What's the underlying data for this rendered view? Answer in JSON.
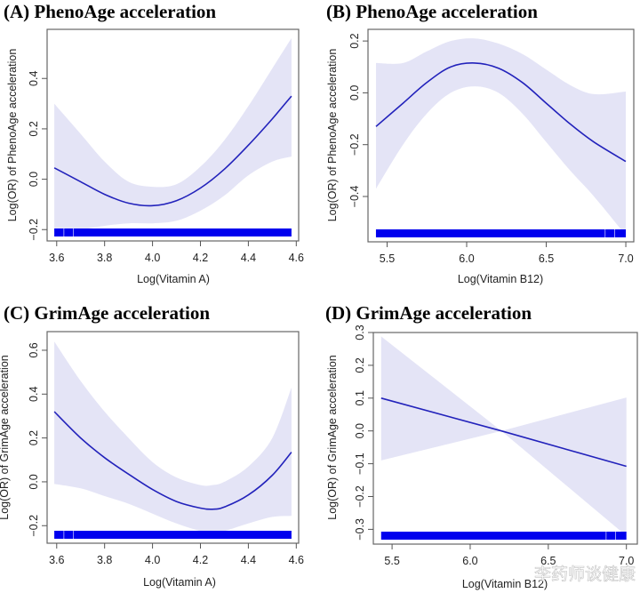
{
  "figure": {
    "watermark": "李药师谈健康"
  },
  "chart_data": [
    {
      "id": "A",
      "type": "line",
      "title": "(A) PhenoAge acceleration",
      "xlabel": "Log(Vitamin A)",
      "ylabel": "Log(OR) of PhenoAge acceleration",
      "xlim": [
        3.56,
        4.61
      ],
      "ylim": [
        -0.245,
        0.595
      ],
      "xticks": [
        3.6,
        3.8,
        4.0,
        4.2,
        4.4,
        4.6
      ],
      "xtick_labels": [
        "3.6",
        "3.8",
        "4.0",
        "4.2",
        "4.4",
        "4.6"
      ],
      "yticks": [
        -0.2,
        0.0,
        0.2,
        0.4
      ],
      "ytick_labels": [
        "-0.2",
        "0.0",
        "0.2",
        "0.4"
      ],
      "series": [
        {
          "name": "Log(OR) estimate",
          "x": [
            3.59,
            3.7,
            3.8,
            3.9,
            4.0,
            4.1,
            4.2,
            4.3,
            4.4,
            4.5,
            4.58
          ],
          "y": [
            0.045,
            -0.01,
            -0.06,
            -0.095,
            -0.105,
            -0.085,
            -0.035,
            0.04,
            0.135,
            0.24,
            0.33
          ],
          "lower": [
            -0.21,
            -0.2,
            -0.185,
            -0.175,
            -0.175,
            -0.165,
            -0.125,
            -0.065,
            0.015,
            0.07,
            0.09
          ],
          "upper": [
            0.3,
            0.18,
            0.07,
            -0.01,
            -0.03,
            -0.02,
            0.05,
            0.155,
            0.29,
            0.44,
            0.56
          ]
        }
      ],
      "rug": {
        "from": 3.59,
        "to": 4.58,
        "gaps": [
          3.63,
          3.67
        ]
      },
      "grid": false,
      "legend": "none"
    },
    {
      "id": "B",
      "type": "line",
      "title": "(B) PhenoAge acceleration",
      "xlabel": "Log(Vitamin B12)",
      "ylabel": "Log(OR) of PhenoAge acceleration",
      "xlim": [
        5.38,
        7.05
      ],
      "ylim": [
        -0.575,
        0.245
      ],
      "xticks": [
        5.5,
        6.0,
        6.5,
        7.0
      ],
      "xtick_labels": [
        "5.5",
        "6.0",
        "6.5",
        "7.0"
      ],
      "yticks": [
        -0.4,
        -0.2,
        0.0,
        0.2
      ],
      "ytick_labels": [
        "-0.4",
        "-0.2",
        "0.0",
        "0.2"
      ],
      "series": [
        {
          "name": "Log(OR) estimate",
          "x": [
            5.43,
            5.6,
            5.75,
            5.9,
            6.05,
            6.2,
            6.35,
            6.5,
            6.65,
            6.8,
            7.0
          ],
          "y": [
            -0.13,
            -0.04,
            0.04,
            0.1,
            0.115,
            0.095,
            0.04,
            -0.04,
            -0.12,
            -0.19,
            -0.265
          ],
          "lower": [
            -0.37,
            -0.2,
            -0.08,
            0.0,
            0.025,
            0.0,
            -0.08,
            -0.19,
            -0.3,
            -0.4,
            -0.55
          ],
          "upper": [
            0.115,
            0.115,
            0.16,
            0.2,
            0.21,
            0.19,
            0.15,
            0.09,
            0.03,
            -0.005,
            0.005
          ]
        }
      ],
      "rug": {
        "from": 5.43,
        "to": 7.0,
        "gaps": [
          6.87,
          6.93
        ]
      },
      "grid": false,
      "legend": "none"
    },
    {
      "id": "C",
      "type": "line",
      "title": "(C) GrimAge acceleration",
      "xlabel": "Log(Vitamin A)",
      "ylabel": "Log(OR) of GrimAge acceleration",
      "xlim": [
        3.56,
        4.61
      ],
      "ylim": [
        -0.28,
        0.685
      ],
      "xticks": [
        3.6,
        3.8,
        4.0,
        4.2,
        4.4,
        4.6
      ],
      "xtick_labels": [
        "3.6",
        "3.8",
        "4.0",
        "4.2",
        "4.4",
        "4.6"
      ],
      "yticks": [
        -0.2,
        0.0,
        0.2,
        0.4,
        0.6
      ],
      "ytick_labels": [
        "-0.2",
        "0.0",
        "0.2",
        "0.4",
        "0.6"
      ],
      "series": [
        {
          "name": "Log(OR) estimate",
          "x": [
            3.59,
            3.7,
            3.8,
            3.9,
            4.0,
            4.1,
            4.2,
            4.25,
            4.3,
            4.4,
            4.5,
            4.58
          ],
          "y": [
            0.32,
            0.2,
            0.11,
            0.035,
            -0.035,
            -0.09,
            -0.12,
            -0.125,
            -0.115,
            -0.06,
            0.03,
            0.135
          ],
          "lower": [
            -0.01,
            -0.03,
            -0.065,
            -0.1,
            -0.145,
            -0.19,
            -0.225,
            -0.235,
            -0.225,
            -0.19,
            -0.16,
            -0.155
          ],
          "upper": [
            0.64,
            0.46,
            0.32,
            0.2,
            0.09,
            0.02,
            -0.015,
            -0.015,
            0.0,
            0.07,
            0.2,
            0.43
          ]
        }
      ],
      "rug": {
        "from": 3.59,
        "to": 4.58,
        "gaps": [
          3.63,
          3.67
        ]
      },
      "grid": false,
      "legend": "none"
    },
    {
      "id": "D",
      "type": "line",
      "title": "(D) GrimAge acceleration",
      "xlabel": "Log(Vitamin B12)",
      "ylabel": "Log(OR) of GrimAge acceleration",
      "xlim": [
        5.38,
        7.07
      ],
      "ylim": [
        -0.345,
        0.3
      ],
      "xticks": [
        5.5,
        6.0,
        6.5,
        7.0
      ],
      "xtick_labels": [
        "5.5",
        "6.0",
        "6.5",
        "7.0"
      ],
      "yticks": [
        -0.3,
        -0.2,
        -0.1,
        0.0,
        0.1,
        0.2,
        0.3
      ],
      "ytick_labels": [
        "-0.3",
        "-0.2",
        "-0.1",
        "0.0",
        "0.1",
        "0.2",
        "0.3"
      ],
      "series": [
        {
          "name": "Log(OR) estimate",
          "x": [
            5.43,
            6.2,
            7.0
          ],
          "y": [
            0.1,
            0.0,
            -0.108
          ],
          "lower": [
            -0.09,
            0.0,
            -0.32
          ],
          "upper": [
            0.288,
            0.0,
            0.102
          ]
        }
      ],
      "rug": {
        "from": 5.43,
        "to": 7.0,
        "gaps": [
          6.87,
          6.93
        ]
      },
      "grid": false,
      "legend": "none"
    }
  ]
}
